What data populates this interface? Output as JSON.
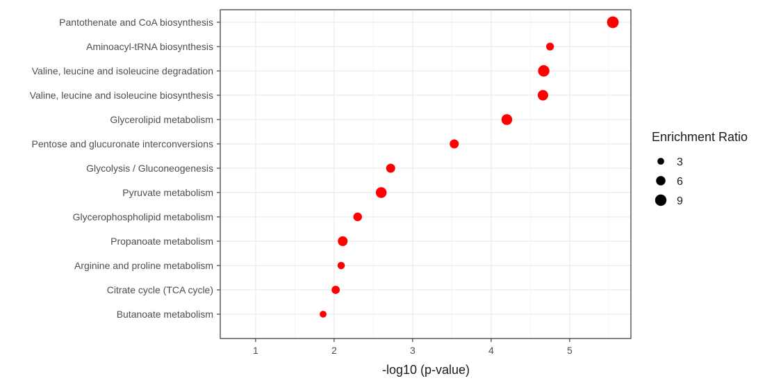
{
  "chart_data": {
    "type": "scatter",
    "title": "",
    "xlabel": "-log10 (p-value)",
    "ylabel": "",
    "xlim": [
      0.55,
      5.78
    ],
    "xticks": [
      1,
      2,
      3,
      4,
      5
    ],
    "grid": true,
    "legend_position": "right",
    "point_color": "#ff0000",
    "categories": [
      "Pantothenate and CoA biosynthesis",
      "Aminoacyl-tRNA biosynthesis",
      "Valine, leucine and isoleucine degradation",
      "Valine, leucine and isoleucine biosynthesis",
      "Glycerolipid metabolism",
      "Pentose and glucuronate interconversions",
      "Glycolysis / Gluconeogenesis",
      "Pyruvate metabolism",
      "Glycerophospholipid metabolism",
      "Propanoate metabolism",
      "Arginine and proline metabolism",
      "Citrate cycle (TCA cycle)",
      "Butanoate metabolism"
    ],
    "points": [
      {
        "pathway": "Pantothenate and CoA biosynthesis",
        "x": 5.55,
        "enrichment_ratio": 9.5
      },
      {
        "pathway": "Aminoacyl-tRNA biosynthesis",
        "x": 4.75,
        "enrichment_ratio": 4.0
      },
      {
        "pathway": "Valine, leucine and isoleucine degradation",
        "x": 4.67,
        "enrichment_ratio": 9.0
      },
      {
        "pathway": "Valine, leucine and isoleucine biosynthesis",
        "x": 4.66,
        "enrichment_ratio": 7.5
      },
      {
        "pathway": "Glycerolipid metabolism",
        "x": 4.2,
        "enrichment_ratio": 8.0
      },
      {
        "pathway": "Pentose and glucuronate interconversions",
        "x": 3.53,
        "enrichment_ratio": 5.5
      },
      {
        "pathway": "Glycolysis / Gluconeogenesis",
        "x": 2.72,
        "enrichment_ratio": 5.5
      },
      {
        "pathway": "Pyruvate metabolism",
        "x": 2.6,
        "enrichment_ratio": 8.0
      },
      {
        "pathway": "Glycerophospholipid metabolism",
        "x": 2.3,
        "enrichment_ratio": 5.0
      },
      {
        "pathway": "Propanoate metabolism",
        "x": 2.11,
        "enrichment_ratio": 6.5
      },
      {
        "pathway": "Arginine and proline metabolism",
        "x": 2.09,
        "enrichment_ratio": 3.5
      },
      {
        "pathway": "Citrate cycle (TCA cycle)",
        "x": 2.02,
        "enrichment_ratio": 4.5
      },
      {
        "pathway": "Butanoate metabolism",
        "x": 1.86,
        "enrichment_ratio": 3.0
      }
    ],
    "legend": {
      "title": "Enrichment Ratio",
      "items": [
        {
          "label": "3",
          "value": 3
        },
        {
          "label": "6",
          "value": 6
        },
        {
          "label": "9",
          "value": 9
        }
      ]
    }
  }
}
